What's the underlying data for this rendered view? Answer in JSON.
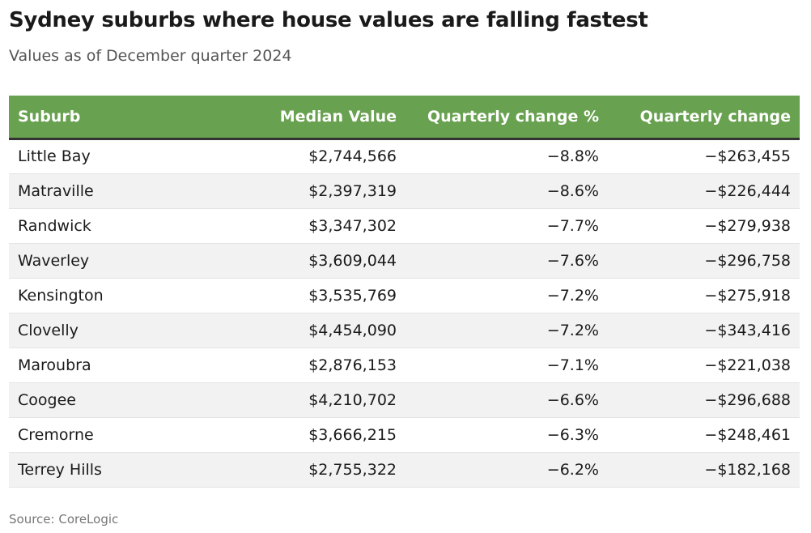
{
  "chart_data": {
    "type": "table",
    "title": "Sydney suburbs where house values are falling fastest",
    "subtitle": "Values as of December quarter 2024",
    "columns": [
      "Suburb",
      "Median Value",
      "Quarterly change %",
      "Quarterly change"
    ],
    "rows": [
      [
        "Little Bay",
        "$2,744,566",
        "−8.8%",
        "−$263,455"
      ],
      [
        "Matraville",
        "$2,397,319",
        "−8.6%",
        "−$226,444"
      ],
      [
        "Randwick",
        "$3,347,302",
        "−7.7%",
        "−$279,938"
      ],
      [
        "Waverley",
        "$3,609,044",
        "−7.6%",
        "−$296,758"
      ],
      [
        "Kensington",
        "$3,535,769",
        "−7.2%",
        "−$275,918"
      ],
      [
        "Clovelly",
        "$4,454,090",
        "−7.2%",
        "−$343,416"
      ],
      [
        "Maroubra",
        "$2,876,153",
        "−7.1%",
        "−$221,038"
      ],
      [
        "Coogee",
        "$4,210,702",
        "−6.6%",
        "−$296,688"
      ],
      [
        "Cremorne",
        "$3,666,215",
        "−6.3%",
        "−$248,461"
      ],
      [
        "Terrey Hills",
        "$2,755,322",
        "−6.2%",
        "−$182,168"
      ]
    ],
    "source": "Source: CoreLogic"
  },
  "colors": {
    "header_background": "#68a14f",
    "header_text": "#ffffff",
    "header_rule": "#333333",
    "stripe": "#f2f2f2"
  }
}
